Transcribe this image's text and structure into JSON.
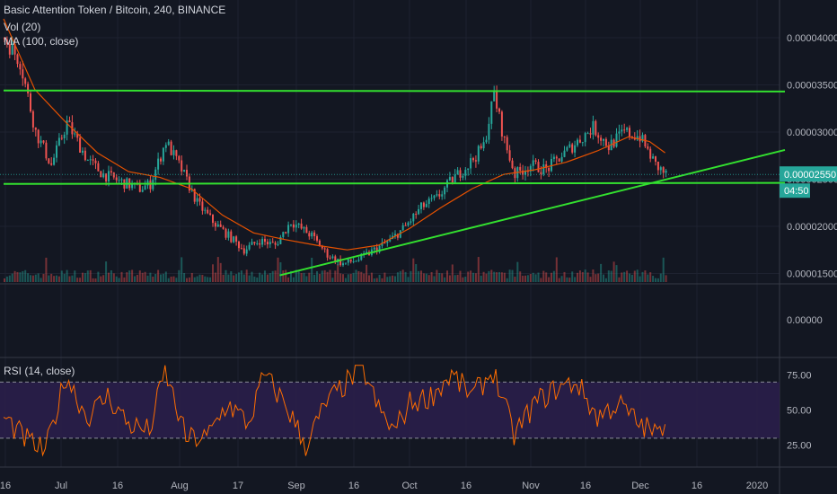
{
  "header": {
    "symbol_line": "Basic Attention Token / Bitcoin, 240, BINANCE",
    "volume_label": "Vol (20)",
    "ma_label": "MA (100, close)",
    "rsi_label": "RSI (14, close)"
  },
  "colors": {
    "background": "#131722",
    "up_candle": "#26a69a",
    "down_candle": "#ef5350",
    "ma_line": "#e65100",
    "trend_lines": "#33e02f",
    "rsi_line": "#ff6d00",
    "rsi_band": "#2a1e4a"
  },
  "price_badge": {
    "price": "0.00002550",
    "countdown": "04:50"
  },
  "chart_data": [
    {
      "type": "candlestick",
      "yaxis_ticks": [
        "0.00004000",
        "0.00003500",
        "0.00003000",
        "0.00002500",
        "0.00002000",
        "0.00001500"
      ],
      "ylim": [
        1.39e-05,
        4.4e-05
      ],
      "x_ticks": [
        "16",
        "Jul",
        "16",
        "Aug",
        "17",
        "Sep",
        "16",
        "Oct",
        "16",
        "Nov",
        "16",
        "Dec",
        "16",
        "2020"
      ],
      "last_price": 2.55e-05,
      "close_path": [
        [
          0,
          4e-05
        ],
        [
          3,
          3.75e-05
        ],
        [
          6,
          3e-05
        ],
        [
          9,
          2.65e-05
        ],
        [
          12,
          3.1e-05
        ],
        [
          16,
          2.7e-05
        ],
        [
          19,
          2.55e-05
        ],
        [
          22,
          2.48e-05
        ],
        [
          26,
          2.4e-05
        ],
        [
          28,
          2.45e-05
        ],
        [
          31,
          2.9e-05
        ],
        [
          34,
          2.6e-05
        ],
        [
          37,
          2.25e-05
        ],
        [
          40,
          2.05e-05
        ],
        [
          43,
          1.9e-05
        ],
        [
          46,
          1.75e-05
        ],
        [
          49,
          1.85e-05
        ],
        [
          52,
          1.8e-05
        ],
        [
          55,
          2.05e-05
        ],
        [
          59,
          1.9e-05
        ],
        [
          62,
          1.7e-05
        ],
        [
          65,
          1.6e-05
        ],
        [
          68,
          1.65e-05
        ],
        [
          71,
          1.75e-05
        ],
        [
          74,
          1.85e-05
        ],
        [
          77,
          2e-05
        ],
        [
          80,
          2.2e-05
        ],
        [
          83,
          2.3e-05
        ],
        [
          86,
          2.5e-05
        ],
        [
          89,
          2.65e-05
        ],
        [
          92,
          2.85e-05
        ],
        [
          94,
          3.4e-05
        ],
        [
          96,
          2.9e-05
        ],
        [
          98,
          2.55e-05
        ],
        [
          101,
          2.65e-05
        ],
        [
          104,
          2.6e-05
        ],
        [
          107,
          2.75e-05
        ],
        [
          110,
          2.9e-05
        ],
        [
          113,
          3.05e-05
        ],
        [
          116,
          2.85e-05
        ],
        [
          119,
          3e-05
        ],
        [
          122,
          2.95e-05
        ],
        [
          125,
          2.65e-05
        ],
        [
          127,
          2.55e-05
        ]
      ],
      "moving_average": [
        [
          0,
          4.2e-05
        ],
        [
          6,
          3.45e-05
        ],
        [
          12,
          3.1e-05
        ],
        [
          18,
          2.78e-05
        ],
        [
          24,
          2.58e-05
        ],
        [
          30,
          2.52e-05
        ],
        [
          36,
          2.4e-05
        ],
        [
          42,
          2.12e-05
        ],
        [
          48,
          1.93e-05
        ],
        [
          54,
          1.86e-05
        ],
        [
          60,
          1.8e-05
        ],
        [
          66,
          1.75e-05
        ],
        [
          72,
          1.8e-05
        ],
        [
          78,
          1.98e-05
        ],
        [
          84,
          2.2e-05
        ],
        [
          90,
          2.4e-05
        ],
        [
          96,
          2.55e-05
        ],
        [
          102,
          2.6e-05
        ],
        [
          108,
          2.68e-05
        ],
        [
          114,
          2.8e-05
        ],
        [
          120,
          2.95e-05
        ],
        [
          124,
          2.9e-05
        ],
        [
          127,
          2.78e-05
        ]
      ],
      "trend_lines": [
        {
          "from": [
            0,
            3.44e-05
          ],
          "to": [
            150,
            3.43e-05
          ]
        },
        {
          "from": [
            0,
            2.45e-05
          ],
          "to": [
            150,
            2.46e-05
          ]
        },
        {
          "from": [
            53,
            1.48e-05
          ],
          "to": [
            150,
            2.81e-05
          ]
        }
      ]
    },
    {
      "type": "bar",
      "label": "Vol (20)",
      "yaxis_ticks": [
        "0.00000"
      ]
    },
    {
      "type": "line",
      "label": "RSI (14, close)",
      "yaxis_ticks": [
        "75.00",
        "50.00",
        "25.00"
      ],
      "ylim": [
        12,
        85
      ],
      "band": [
        30,
        70
      ],
      "path": [
        [
          0,
          45
        ],
        [
          4,
          30
        ],
        [
          8,
          20
        ],
        [
          12,
          75
        ],
        [
          16,
          45
        ],
        [
          20,
          60
        ],
        [
          24,
          40
        ],
        [
          28,
          35
        ],
        [
          31,
          78
        ],
        [
          35,
          30
        ],
        [
          39,
          30
        ],
        [
          43,
          55
        ],
        [
          47,
          40
        ],
        [
          50,
          75
        ],
        [
          54,
          55
        ],
        [
          58,
          25
        ],
        [
          62,
          55
        ],
        [
          66,
          70
        ],
        [
          69,
          80
        ],
        [
          72,
          50
        ],
        [
          75,
          35
        ],
        [
          78,
          55
        ],
        [
          82,
          60
        ],
        [
          86,
          75
        ],
        [
          90,
          60
        ],
        [
          94,
          78
        ],
        [
          98,
          32
        ],
        [
          102,
          55
        ],
        [
          106,
          65
        ],
        [
          110,
          70
        ],
        [
          114,
          45
        ],
        [
          118,
          55
        ],
        [
          122,
          40
        ],
        [
          126,
          32
        ],
        [
          127,
          47
        ]
      ]
    }
  ]
}
